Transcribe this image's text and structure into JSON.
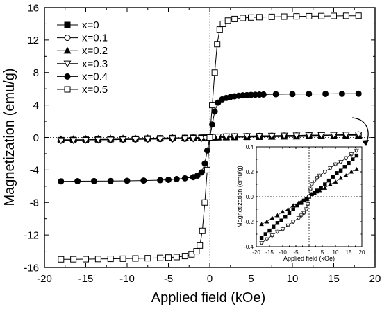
{
  "chart_data": [
    {
      "type": "scatter",
      "xlabel": "Applied field (kOe)",
      "ylabel": "Magnetization (emu/g)",
      "xlim": [
        -20,
        20
      ],
      "ylim": [
        -16,
        16
      ],
      "xticks": [
        "-20",
        "-15",
        "-10",
        "-5",
        "0",
        "5",
        "10",
        "15",
        "20"
      ],
      "yticks": [
        "-16",
        "-12",
        "-8",
        "-4",
        "0",
        "4",
        "8",
        "12",
        "16"
      ],
      "legend_position": "top-left",
      "reference_lines": {
        "x": 0,
        "y": 0,
        "style": "dotted"
      },
      "series": [
        {
          "name": "x=0",
          "marker": "filled-square",
          "x": [
            -18,
            -16.5,
            -15,
            -13.5,
            -12,
            -10.5,
            -9,
            -7.5,
            -6,
            -4.5,
            -3,
            -2,
            -1,
            -0.5,
            0,
            0.5,
            1,
            2,
            3,
            4.5,
            6,
            7.5,
            9,
            10.5,
            12,
            13.5,
            15,
            16.5,
            18
          ],
          "y": [
            -0.33,
            -0.3,
            -0.27,
            -0.24,
            -0.21,
            -0.19,
            -0.16,
            -0.13,
            -0.1,
            -0.07,
            -0.05,
            -0.03,
            -0.02,
            -0.01,
            0,
            0.01,
            0.02,
            0.03,
            0.05,
            0.07,
            0.1,
            0.13,
            0.16,
            0.19,
            0.21,
            0.24,
            0.27,
            0.3,
            0.33
          ]
        },
        {
          "name": "x=0.1",
          "marker": "open-circle",
          "x": [
            -18,
            -16.5,
            -15,
            -13.5,
            -12,
            -10.5,
            -9,
            -7.5,
            -6,
            -4.5,
            -3,
            -2,
            -1,
            -0.5,
            0,
            0.5,
            1,
            2,
            3,
            4.5,
            6,
            7.5,
            9,
            10.5,
            12,
            13.5,
            15,
            16.5,
            18
          ],
          "y": [
            -0.37,
            -0.34,
            -0.31,
            -0.29,
            -0.27,
            -0.25,
            -0.23,
            -0.21,
            -0.19,
            -0.17,
            -0.15,
            -0.13,
            -0.1,
            -0.06,
            0,
            0.06,
            0.1,
            0.13,
            0.15,
            0.17,
            0.19,
            0.21,
            0.23,
            0.25,
            0.27,
            0.29,
            0.31,
            0.34,
            0.37
          ]
        },
        {
          "name": "x=0.2",
          "marker": "filled-triangle-up",
          "x": [
            -18,
            -16.5,
            -15,
            -13.5,
            -12,
            -10.5,
            -9,
            -7.5,
            -6,
            -4.5,
            -3,
            -2,
            -1,
            -0.5,
            0,
            0.5,
            1,
            2,
            3,
            4.5,
            6,
            7.5,
            9,
            10.5,
            12,
            13.5,
            15,
            16.5,
            18
          ],
          "y": [
            -0.22,
            -0.2,
            -0.18,
            -0.16,
            -0.14,
            -0.12,
            -0.11,
            -0.09,
            -0.07,
            -0.06,
            -0.04,
            -0.03,
            -0.02,
            -0.01,
            0,
            0.01,
            0.02,
            0.03,
            0.04,
            0.06,
            0.07,
            0.09,
            0.11,
            0.12,
            0.14,
            0.16,
            0.18,
            0.2,
            0.22
          ]
        },
        {
          "name": "x=0.3",
          "marker": "open-triangle-down",
          "x": [
            -18,
            -16.5,
            -15,
            -13.5,
            -12,
            -10.5,
            -9,
            -7.5,
            -6,
            -4.5,
            -3,
            -2,
            -1,
            -0.5,
            0,
            0.5,
            1,
            2,
            3,
            4.5,
            6,
            7.5,
            9,
            10.5,
            12,
            13.5,
            15,
            16.5,
            18
          ],
          "y": [
            -0.37,
            -0.34,
            -0.31,
            -0.29,
            -0.27,
            -0.25,
            -0.23,
            -0.21,
            -0.19,
            -0.17,
            -0.15,
            -0.13,
            -0.1,
            -0.06,
            0,
            0.06,
            0.1,
            0.13,
            0.15,
            0.17,
            0.19,
            0.21,
            0.23,
            0.25,
            0.27,
            0.29,
            0.31,
            0.34,
            0.37
          ]
        },
        {
          "name": "x=0.4",
          "marker": "filled-circle",
          "x": [
            -18,
            -16,
            -14,
            -12,
            -10,
            -8,
            -6,
            -5,
            -4,
            -3,
            -2,
            -1.5,
            -1,
            -0.6,
            -0.3,
            0,
            0.3,
            0.6,
            1,
            1.5,
            2,
            2.5,
            3,
            3.5,
            4,
            4.5,
            5,
            5.5,
            6,
            6.5,
            8,
            10,
            12,
            14,
            16,
            18
          ],
          "y": [
            -5.4,
            -5.38,
            -5.37,
            -5.35,
            -5.33,
            -5.3,
            -5.25,
            -5.2,
            -5.12,
            -5.02,
            -4.88,
            -4.7,
            -4.3,
            -3.2,
            -1.6,
            0,
            1.6,
            3.2,
            4.3,
            4.7,
            4.88,
            5.0,
            5.08,
            5.14,
            5.19,
            5.22,
            5.25,
            5.27,
            5.29,
            5.3,
            5.33,
            5.35,
            5.37,
            5.38,
            5.39,
            5.4
          ]
        },
        {
          "name": "x=0.5",
          "marker": "open-square",
          "x": [
            -18,
            -16.5,
            -15,
            -13.5,
            -12,
            -10.5,
            -9,
            -7.5,
            -6,
            -5,
            -4,
            -3,
            -2.2,
            -1.6,
            -1.2,
            -0.9,
            -0.6,
            -0.3,
            0,
            0.3,
            0.6,
            0.9,
            1.2,
            1.6,
            2.2,
            3,
            4,
            5,
            6,
            7.5,
            9,
            10.5,
            12,
            13.5,
            15,
            16.5,
            18
          ],
          "y": [
            -15.0,
            -14.99,
            -14.98,
            -14.96,
            -14.94,
            -14.92,
            -14.89,
            -14.86,
            -14.82,
            -14.78,
            -14.72,
            -14.6,
            -14.4,
            -14.0,
            -13.3,
            -11.5,
            -8.0,
            -4.0,
            0,
            4.0,
            8.0,
            11.5,
            13.3,
            14.0,
            14.4,
            14.6,
            14.72,
            14.78,
            14.82,
            14.86,
            14.89,
            14.92,
            14.94,
            14.96,
            14.98,
            14.99,
            15.0
          ]
        }
      ]
    },
    {
      "type": "scatter",
      "role": "inset",
      "xlabel": "Applied field (kOe)",
      "ylabel": "Magnetization (emu/g)",
      "xlim": [
        -20,
        20
      ],
      "ylim": [
        -0.4,
        0.4
      ],
      "xticks": [
        "-20",
        "-15",
        "-10",
        "-5",
        "0",
        "5",
        "10",
        "15",
        "20"
      ],
      "yticks": [
        "-0.4",
        "-0.2",
        "0.0",
        "0.2",
        "0.4"
      ],
      "series": [
        {
          "name": "x=0",
          "marker": "filled-square",
          "x": [
            -18,
            -16.5,
            -15,
            -13.5,
            -12,
            -10.5,
            -9,
            -7.5,
            -6,
            -4.5,
            -3,
            -2,
            -1,
            0,
            1,
            2,
            3,
            4.5,
            6,
            7.5,
            9,
            10.5,
            12,
            13.5,
            15,
            16.5,
            18
          ],
          "y": [
            -0.33,
            -0.3,
            -0.27,
            -0.24,
            -0.21,
            -0.19,
            -0.16,
            -0.13,
            -0.1,
            -0.07,
            -0.05,
            -0.03,
            -0.02,
            0,
            0.02,
            0.03,
            0.05,
            0.07,
            0.1,
            0.13,
            0.16,
            0.19,
            0.21,
            0.24,
            0.27,
            0.3,
            0.33
          ]
        },
        {
          "name": "x=0.1",
          "marker": "open-circle",
          "x": [
            -18,
            -16,
            -14,
            -12,
            -10,
            -8,
            -6,
            -4,
            -3,
            -2,
            -1,
            -0.5,
            0,
            0.5,
            1,
            2,
            3,
            4,
            6,
            8,
            10,
            12,
            14,
            16,
            18
          ],
          "y": [
            -0.37,
            -0.34,
            -0.31,
            -0.28,
            -0.26,
            -0.23,
            -0.2,
            -0.17,
            -0.15,
            -0.13,
            -0.1,
            -0.06,
            0,
            0.06,
            0.1,
            0.13,
            0.15,
            0.17,
            0.2,
            0.23,
            0.26,
            0.28,
            0.31,
            0.34,
            0.37
          ]
        },
        {
          "name": "x=0.2",
          "marker": "filled-triangle-up",
          "x": [
            -18,
            -16,
            -14,
            -12,
            -10,
            -8,
            -6,
            -4,
            -3,
            -2,
            -1,
            0,
            1,
            2,
            3,
            4,
            6,
            8,
            10,
            12,
            14,
            16,
            18
          ],
          "y": [
            -0.22,
            -0.2,
            -0.17,
            -0.15,
            -0.12,
            -0.1,
            -0.07,
            -0.05,
            -0.04,
            -0.03,
            -0.02,
            0,
            0.02,
            0.03,
            0.04,
            0.05,
            0.07,
            0.1,
            0.12,
            0.15,
            0.17,
            0.2,
            0.22
          ]
        },
        {
          "name": "x=0.3",
          "marker": "open-triangle-down",
          "x": [
            -18,
            -16,
            -14,
            -12,
            -10,
            -8,
            -6,
            -4,
            -3,
            -2,
            -1,
            -0.5,
            0,
            0.5,
            1,
            2,
            3,
            4,
            6,
            8,
            10,
            12,
            14,
            16,
            18
          ],
          "y": [
            -0.37,
            -0.34,
            -0.31,
            -0.28,
            -0.26,
            -0.23,
            -0.2,
            -0.17,
            -0.15,
            -0.13,
            -0.1,
            -0.06,
            0,
            0.06,
            0.1,
            0.13,
            0.15,
            0.17,
            0.2,
            0.23,
            0.26,
            0.28,
            0.31,
            0.34,
            0.37
          ]
        }
      ]
    }
  ]
}
